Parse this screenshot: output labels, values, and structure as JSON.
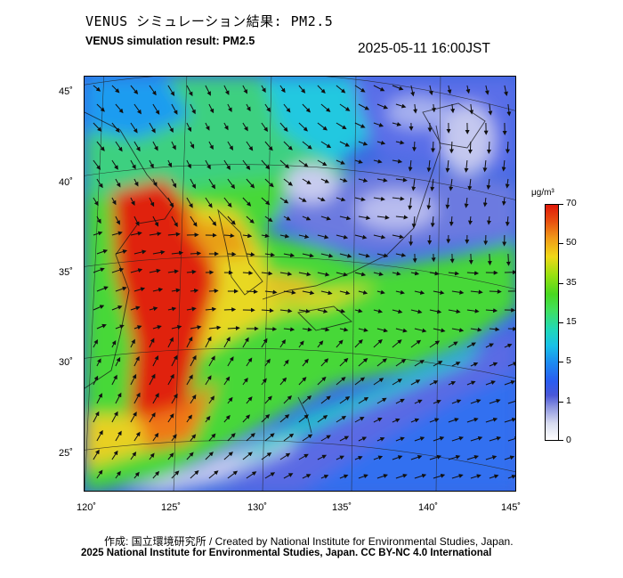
{
  "header": {
    "title_jp": "VENUS シミュレーション結果: PM2.5",
    "title_en": "VENUS simulation result: PM2.5",
    "timestamp": "2025-05-11 16:00JST"
  },
  "map": {
    "lon_range": [
      120,
      145
    ],
    "lat_range": [
      23,
      46
    ],
    "lat_labels": [
      "45˚",
      "40˚",
      "35˚",
      "30˚",
      "25˚"
    ],
    "lon_labels": [
      "120˚",
      "125˚",
      "130˚",
      "135˚",
      "140˚",
      "145˚"
    ],
    "colors": {
      "low": "#d8dcf0",
      "blue": "#4a57d8",
      "cyan": "#18c0e8",
      "green": "#48d820",
      "yellow": "#f0d818",
      "orange": "#f09818",
      "red": "#e01808"
    }
  },
  "colorbar": {
    "unit": "μg/m³",
    "ticks": [
      "70",
      "50",
      "35",
      "15",
      "5",
      "1",
      "0"
    ]
  },
  "footer": {
    "credit_jp": "作成: 国立環境研究所 / Created by National Institute for Environmental Studies, Japan.",
    "credit_en": "2025 National Institute for Environmental Studies, Japan. CC BY-NC 4.0 International"
  }
}
